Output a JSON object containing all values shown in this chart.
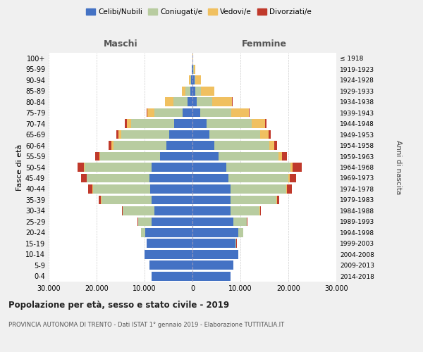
{
  "age_groups": [
    "0-4",
    "5-9",
    "10-14",
    "15-19",
    "20-24",
    "25-29",
    "30-34",
    "35-39",
    "40-44",
    "45-49",
    "50-54",
    "55-59",
    "60-64",
    "65-69",
    "70-74",
    "75-79",
    "80-84",
    "85-89",
    "90-94",
    "95-99",
    "100+"
  ],
  "birth_years": [
    "2014-2018",
    "2009-2013",
    "2004-2008",
    "1999-2003",
    "1994-1998",
    "1989-1993",
    "1984-1988",
    "1979-1983",
    "1974-1978",
    "1969-1973",
    "1964-1968",
    "1959-1963",
    "1954-1958",
    "1949-1953",
    "1944-1948",
    "1939-1943",
    "1934-1938",
    "1929-1933",
    "1924-1928",
    "1919-1923",
    "≤ 1918"
  ],
  "colors": {
    "celibi": "#4472c4",
    "coniugati": "#b8cca0",
    "vedovi": "#f0c060",
    "divorziati": "#c0392b"
  },
  "maschi": {
    "celibi": [
      8500,
      9000,
      10000,
      9500,
      9800,
      8500,
      8000,
      8500,
      8800,
      9000,
      8500,
      6800,
      5500,
      4800,
      3800,
      2000,
      1000,
      500,
      250,
      120,
      50
    ],
    "coniugati": [
      10,
      15,
      40,
      100,
      900,
      2800,
      6500,
      10500,
      12000,
      13000,
      14000,
      12500,
      11000,
      10000,
      9000,
      6000,
      3000,
      900,
      250,
      60,
      15
    ],
    "vedovi": [
      1,
      1,
      2,
      4,
      8,
      15,
      25,
      45,
      70,
      90,
      130,
      180,
      380,
      650,
      950,
      1400,
      1700,
      800,
      180,
      25,
      5
    ],
    "divorziati": [
      2,
      4,
      8,
      18,
      45,
      90,
      230,
      470,
      950,
      1100,
      1400,
      850,
      580,
      480,
      380,
      180,
      90,
      45,
      25,
      8,
      1
    ]
  },
  "femmine": {
    "celibi": [
      8000,
      8500,
      9500,
      9000,
      9500,
      8500,
      8000,
      8000,
      8000,
      7500,
      7000,
      5500,
      4500,
      3600,
      2900,
      1600,
      900,
      650,
      380,
      180,
      45
    ],
    "coniugati": [
      10,
      18,
      45,
      180,
      1100,
      2800,
      6000,
      9500,
      11500,
      12500,
      13500,
      12500,
      11500,
      10500,
      9500,
      6500,
      3200,
      1100,
      280,
      70,
      15
    ],
    "vedovi": [
      1,
      1,
      2,
      4,
      12,
      25,
      50,
      90,
      180,
      270,
      450,
      650,
      1100,
      1800,
      2800,
      3700,
      4200,
      2800,
      1100,
      270,
      28
    ],
    "divorziati": [
      2,
      4,
      8,
      18,
      45,
      90,
      270,
      550,
      1100,
      1400,
      1900,
      1100,
      580,
      380,
      280,
      180,
      90,
      45,
      28,
      9,
      1
    ]
  },
  "title": "Popolazione per età, sesso e stato civile - 2019",
  "subtitle": "PROVINCIA AUTONOMA DI TRENTO - Dati ISTAT 1° gennaio 2019 - Elaborazione TUTTITALIA.IT",
  "ylabel_left": "Fasce di età",
  "ylabel_right": "Anni di nascita",
  "xlim": 30000,
  "legend_labels": [
    "Celibi/Nubili",
    "Coniugati/e",
    "Vedovi/e",
    "Divorziati/e"
  ],
  "maschi_label": "Maschi",
  "femmine_label": "Femmine",
  "bg_color": "#f0f0f0",
  "plot_bg": "#ffffff"
}
